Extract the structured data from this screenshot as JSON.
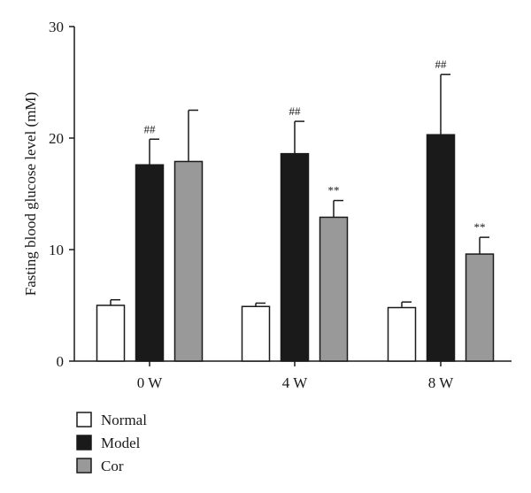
{
  "chart_data": {
    "type": "bar",
    "title": "",
    "xlabel": "",
    "ylabel": "Fasting blood glucose level (mM)",
    "ylim": [
      0,
      30
    ],
    "yticks": [
      0,
      10,
      20,
      30
    ],
    "categories": [
      "0 W",
      "4 W",
      "8 W"
    ],
    "series": [
      {
        "name": "Normal",
        "color": "#ffffff",
        "values": [
          5.0,
          4.9,
          4.8
        ],
        "errors": [
          0.5,
          0.3,
          0.5
        ],
        "annotations": [
          "",
          "",
          ""
        ]
      },
      {
        "name": "Model",
        "color": "#1a1a1a",
        "values": [
          17.6,
          18.6,
          20.3
        ],
        "errors": [
          2.3,
          2.9,
          5.4
        ],
        "annotations": [
          "##",
          "##",
          "##"
        ]
      },
      {
        "name": "Cor",
        "color": "#999999",
        "values": [
          17.9,
          12.9,
          9.6
        ],
        "errors": [
          4.6,
          1.5,
          1.5
        ],
        "annotations": [
          "",
          "**",
          "**"
        ]
      }
    ],
    "legend_position": "bottom-left",
    "grid": false
  }
}
